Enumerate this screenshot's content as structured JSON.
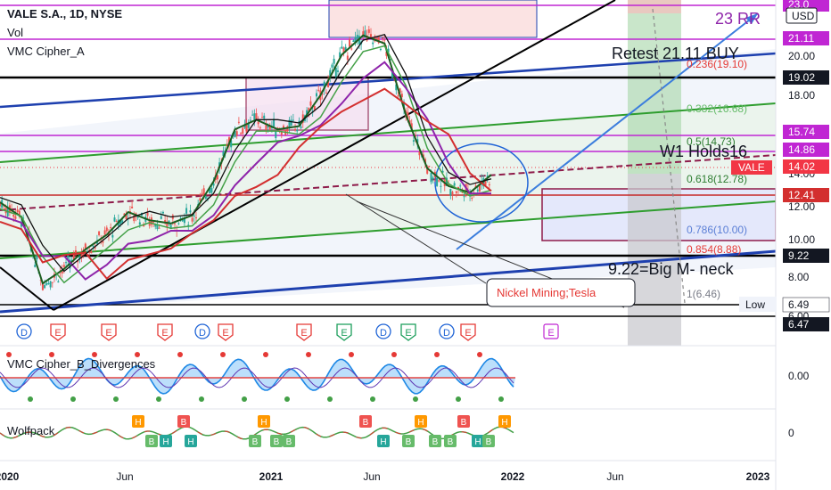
{
  "header": {
    "symbol": "VALE S.A., 1D, NYSE",
    "vol": "Vol",
    "indicator": "VMC Cipher_A"
  },
  "currency": "USD",
  "pane_labels": {
    "cipher_b": "VMC Cipher_B_Divergences",
    "wolfpack": "Wolfpack"
  },
  "annotations": {
    "rr": "23 RR",
    "retest": "Retest 21.11 BUY",
    "w1": "W1 Holds16",
    "neck": "9.22=Big M- neck",
    "nickel": "Nickel Mining;Tesla",
    "low_tag": "Low"
  },
  "colors": {
    "candles": "#2e7d32",
    "red_ma": "#d32f2f",
    "purple_ma": "#8e24aa",
    "blue_trend": "#1e40af",
    "green_trend": "#2e9d2e",
    "magenta_level": "#c026d3",
    "rr_green": "#66bb6a",
    "rr_red": "#ef9a9a",
    "badge_red": "#e53935",
    "badge_blue": "#1e63d6",
    "badge_green": "#1b9e5b"
  },
  "chart_data": {
    "type": "candlestick",
    "price_axis_ticks": [
      "20.00",
      "18.00",
      "16.00",
      "14.00",
      "12.00",
      "10.00",
      "8.00",
      "6.00"
    ],
    "time_axis_ticks": [
      "2020",
      "Jun",
      "2021",
      "Jun",
      "2022",
      "Jun",
      "2023"
    ],
    "price_close_series": [
      {
        "t": "2020-01",
        "p": 12.3
      },
      {
        "t": "2020-02",
        "p": 11.4
      },
      {
        "t": "2020-03",
        "p": 7.3
      },
      {
        "t": "2020-04",
        "p": 8.2
      },
      {
        "t": "2020-05",
        "p": 9.4
      },
      {
        "t": "2020-06",
        "p": 10.3
      },
      {
        "t": "2020-07",
        "p": 11.7
      },
      {
        "t": "2020-08",
        "p": 11.2
      },
      {
        "t": "2020-09",
        "p": 11.0
      },
      {
        "t": "2020-10",
        "p": 11.5
      },
      {
        "t": "2020-11",
        "p": 13.6
      },
      {
        "t": "2020-12",
        "p": 16.8
      },
      {
        "t": "2021-01",
        "p": 17.4
      },
      {
        "t": "2021-02",
        "p": 16.8
      },
      {
        "t": "2021-03",
        "p": 17.0
      },
      {
        "t": "2021-04",
        "p": 18.9
      },
      {
        "t": "2021-05",
        "p": 21.4
      },
      {
        "t": "2021-06",
        "p": 22.6
      },
      {
        "t": "2021-07",
        "p": 22.1
      },
      {
        "t": "2021-08",
        "p": 17.7
      },
      {
        "t": "2021-09",
        "p": 14.4
      },
      {
        "t": "2021-10",
        "p": 13.3
      },
      {
        "t": "2021-11",
        "p": 12.9
      },
      {
        "t": "2021-12",
        "p": 14.0
      }
    ],
    "horizontal_levels": [
      {
        "price": 21.11,
        "label": "21.11",
        "color": "#c026d3"
      },
      {
        "price": 19.02,
        "label": "19.02",
        "color": "#000000"
      },
      {
        "price": 15.74,
        "label": "15.74",
        "color": "#c026d3"
      },
      {
        "price": 14.86,
        "label": "14.86",
        "color": "#c026d3"
      },
      {
        "price": 12.41,
        "label": "12.41",
        "color": "#c62828"
      },
      {
        "price": 9.22,
        "label": "9.22",
        "color": "#000000"
      },
      {
        "price": 6.49,
        "label": "6.49",
        "color": "#000000"
      },
      {
        "price": 6.47,
        "label": "6.47",
        "color": "#000000"
      }
    ],
    "axis_tags": [
      {
        "text": "23.0",
        "bg": "#c026d3"
      },
      {
        "text": "21.11",
        "bg": "#c026d3"
      },
      {
        "text": "19.02",
        "bg": "#131722"
      },
      {
        "text": "15.74",
        "bg": "#c026d3"
      },
      {
        "text": "14.86",
        "bg": "#c026d3"
      },
      {
        "text": "VALE",
        "bg": "#f23645"
      },
      {
        "text": "14.02",
        "bg": "#f23645"
      },
      {
        "text": "12.41",
        "bg": "#d32f2f"
      },
      {
        "text": "9.22",
        "bg": "#131722"
      },
      {
        "text": "6.49",
        "bg": "#ffffff",
        "fg": "#131722"
      },
      {
        "text": "6.47",
        "bg": "#131722"
      }
    ],
    "fibonacci": [
      {
        "ratio": "0.236(19.10)",
        "color": "#e53935"
      },
      {
        "ratio": "0.382(16.68)",
        "color": "#66bb6a"
      },
      {
        "ratio": "0.5(14.73)",
        "color": "#2e7d32"
      },
      {
        "ratio": "0.618(12.78)",
        "color": "#2e7d32"
      },
      {
        "ratio": "0.786(10.00)",
        "color": "#5b7fd6"
      },
      {
        "ratio": "0.854(8.88)",
        "color": "#e53935"
      },
      {
        "ratio": "1(6.46)",
        "color": "#787b86"
      }
    ],
    "event_badges": [
      "D",
      "E",
      "E",
      "E",
      "D",
      "E",
      "E",
      "E",
      "D",
      "E",
      "D",
      "E",
      "E",
      "E",
      "E"
    ],
    "cipher_b_axis": "0.00",
    "wolfpack_axis": "0",
    "wolfpack_badges": [
      "H",
      "B",
      "H",
      "B",
      "H",
      "B",
      "H",
      "B",
      "B",
      "B",
      "H",
      "B",
      "H",
      "B",
      "B",
      "B",
      "H",
      "B",
      "H"
    ]
  }
}
